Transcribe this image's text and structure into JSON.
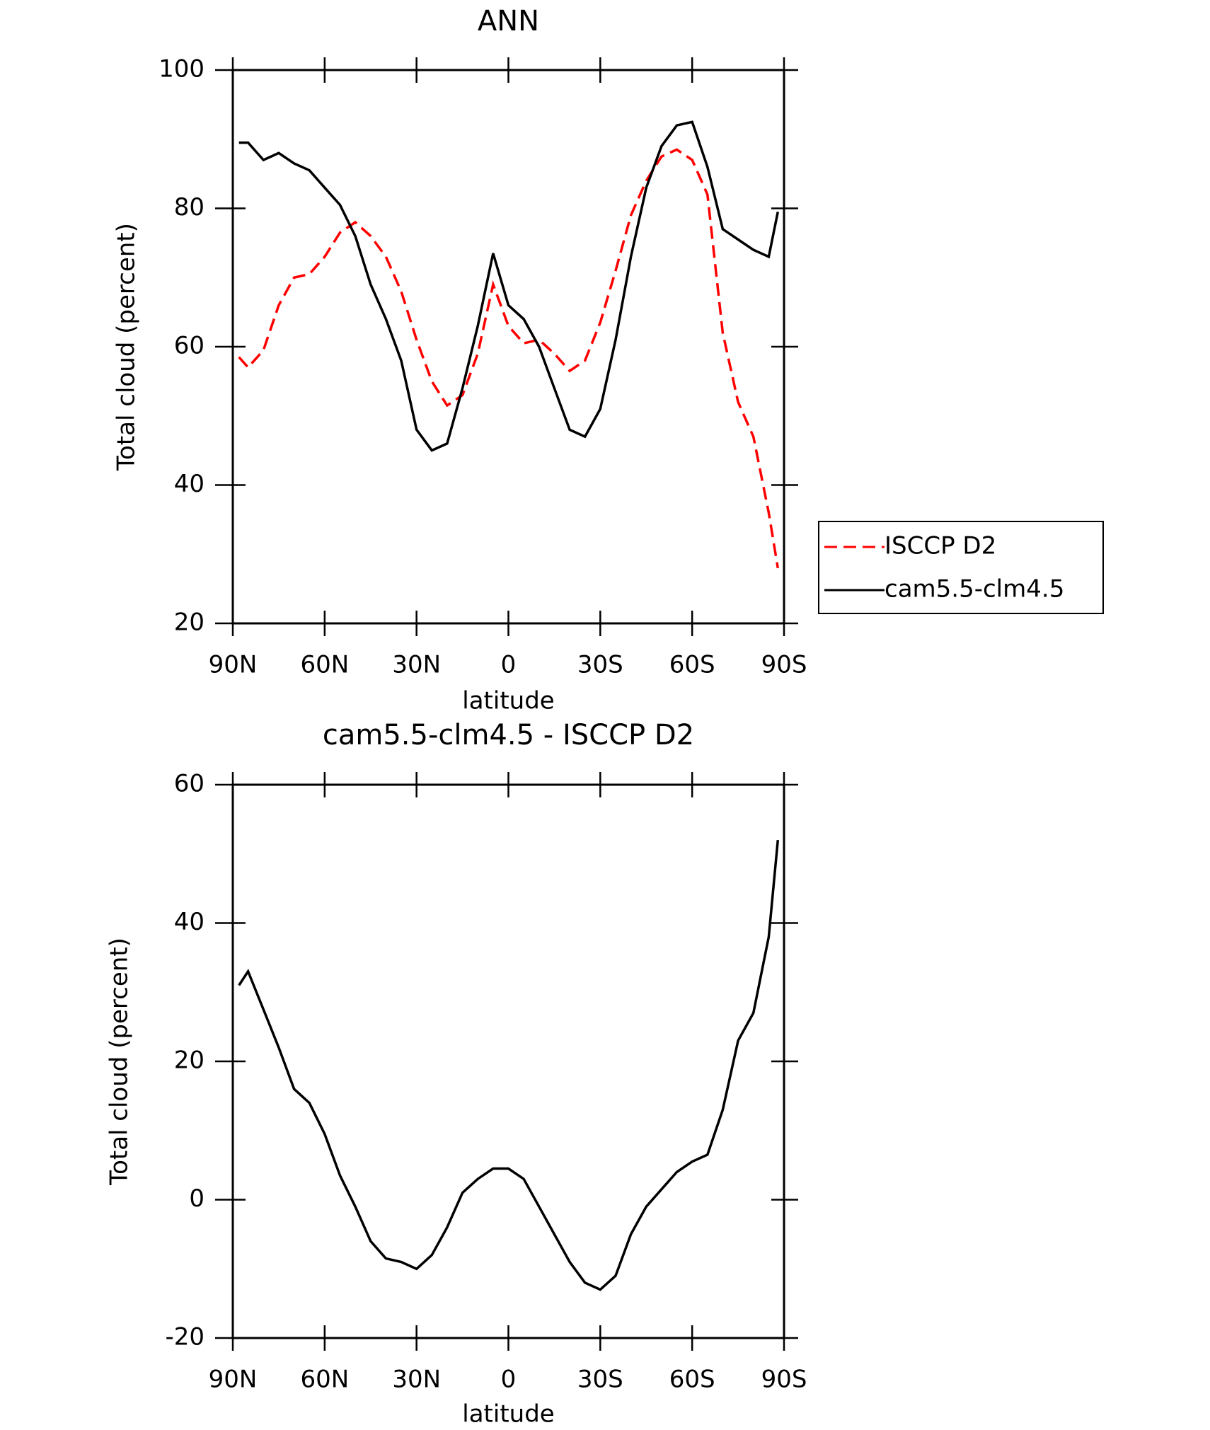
{
  "chart_data": [
    {
      "type": "line",
      "title": "ANN",
      "xlabel": "latitude",
      "ylabel": "Total cloud (percent)",
      "x": [
        88,
        85,
        80,
        75,
        70,
        65,
        60,
        55,
        50,
        45,
        40,
        35,
        30,
        25,
        20,
        15,
        10,
        5,
        0,
        -5,
        -10,
        -15,
        -20,
        -25,
        -30,
        -35,
        -40,
        -45,
        -50,
        -55,
        -60,
        -65,
        -70,
        -75,
        -80,
        -85,
        -88
      ],
      "series": [
        {
          "name": "ISCCP D2",
          "color": "#ff0000",
          "line_style": "dashed",
          "values": [
            58.5,
            57,
            59.5,
            66,
            70,
            70.5,
            73,
            76.5,
            78,
            76,
            73,
            68,
            61,
            55,
            51.5,
            53,
            59,
            69,
            63,
            60.5,
            61,
            59,
            56.5,
            58,
            63.5,
            71,
            79,
            84,
            87.5,
            88.5,
            87,
            82,
            62,
            52,
            47,
            36,
            28
          ]
        },
        {
          "name": "cam5.5-clm4.5",
          "color": "#000000",
          "line_style": "solid",
          "values": [
            89.5,
            89.5,
            87,
            88,
            86.5,
            85.5,
            83,
            80.5,
            76,
            69,
            64,
            58,
            48,
            45,
            46,
            54,
            63,
            73.5,
            66,
            64,
            60,
            54,
            48,
            47,
            51,
            61,
            73,
            83,
            89,
            92,
            92.5,
            86,
            77,
            75.5,
            74,
            73,
            79.5
          ]
        }
      ],
      "xlim": [
        90,
        -90
      ],
      "ylim": [
        20,
        100
      ],
      "xticks": [
        {
          "value": 90,
          "label": "90N"
        },
        {
          "value": 60,
          "label": "60N"
        },
        {
          "value": 30,
          "label": "30N"
        },
        0,
        {
          "value": -30,
          "label": "30S"
        },
        {
          "value": -60,
          "label": "60S"
        },
        {
          "value": -90,
          "label": "90S"
        }
      ],
      "yticks": [
        20,
        40,
        60,
        80,
        100
      ],
      "grid": false,
      "legend": "outside right"
    },
    {
      "type": "line",
      "title": "cam5.5-clm4.5 - ISCCP D2",
      "xlabel": "latitude",
      "ylabel": "Total cloud (percent)",
      "x": [
        88,
        85,
        80,
        75,
        70,
        65,
        60,
        55,
        50,
        45,
        40,
        35,
        30,
        25,
        20,
        15,
        10,
        5,
        0,
        -5,
        -10,
        -15,
        -20,
        -25,
        -30,
        -35,
        -40,
        -45,
        -50,
        -55,
        -60,
        -65,
        -70,
        -75,
        -80,
        -85,
        -88
      ],
      "series": [
        {
          "color": "#000000",
          "line_style": "solid",
          "values": [
            31,
            33,
            27.5,
            22,
            16,
            14,
            9.5,
            3.5,
            -1,
            -6,
            -8.5,
            -9,
            -10,
            -8,
            -4,
            1,
            3,
            4.5,
            4.5,
            3,
            -1,
            -5,
            -9,
            -12,
            -13,
            -11,
            -5,
            -1,
            1.5,
            4,
            5.5,
            6.5,
            13,
            23,
            27,
            38,
            52
          ]
        }
      ],
      "xlim": [
        90,
        -90
      ],
      "ylim": [
        -20,
        60
      ],
      "xticks": [
        {
          "value": 90,
          "label": "90N"
        },
        {
          "value": 60,
          "label": "60N"
        },
        {
          "value": 30,
          "label": "30N"
        },
        0,
        {
          "value": -30,
          "label": "30S"
        },
        {
          "value": -60,
          "label": "60S"
        },
        {
          "value": -90,
          "label": "90S"
        }
      ],
      "yticks": [
        -20,
        0,
        20,
        40,
        60
      ],
      "grid": false
    }
  ]
}
